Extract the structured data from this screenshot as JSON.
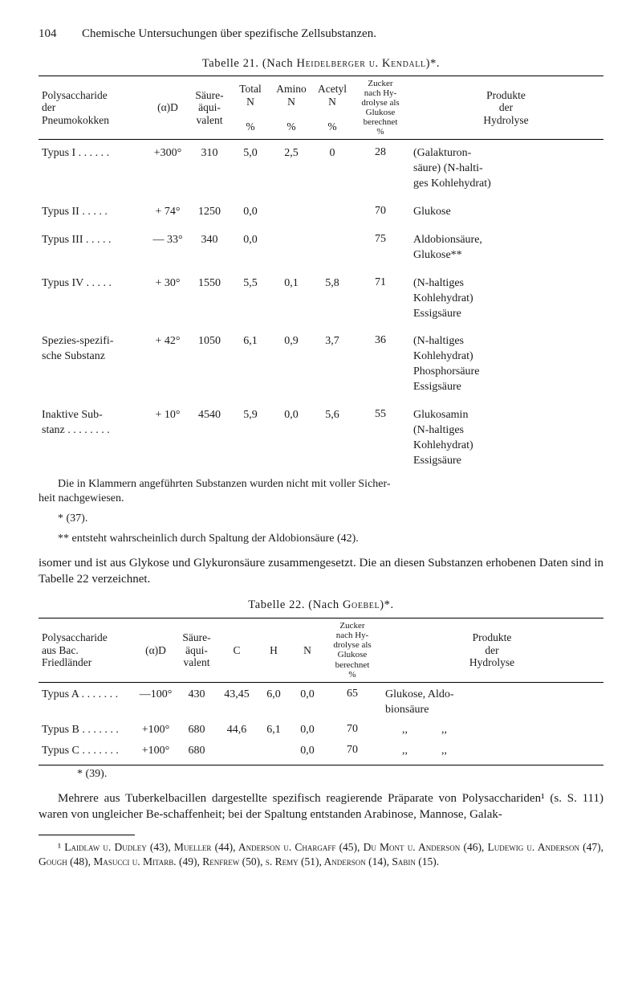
{
  "header": {
    "page_num": "104",
    "running": "Chemische Untersuchungen über spezifische Zellsubstanzen."
  },
  "table21": {
    "caption_prefix": "Tabelle 21.  (Nach ",
    "caption_names": "Heidelberger u. Kendall",
    "caption_suffix": ")*.",
    "headers": {
      "col1a": "Polysaccharide",
      "col1b": "der",
      "col1c": "Pneumokokken",
      "col2": "(α)D",
      "col3a": "Säure-",
      "col3b": "äqui-",
      "col3c": "valent",
      "col4a": "Total",
      "col4b": "N",
      "col4c": "%",
      "col5a": "Amino",
      "col5b": "N",
      "col5c": "%",
      "col6a": "Acetyl",
      "col6b": "N",
      "col6c": "%",
      "col7a": "Zucker",
      "col7b": "nach Hy-",
      "col7c": "drolyse als",
      "col7d": "Glukose",
      "col7e": "berechnet",
      "col7f": "%",
      "col8a": "Produkte",
      "col8b": "der",
      "col8c": "Hydrolyse"
    },
    "rows": [
      {
        "name": "Typus I  . . . . . .",
        "alpha": "+300°",
        "aq": "310",
        "tn": "5,0",
        "an": "2,5",
        "ac": "0",
        "zk": "28",
        "prod": "(Galakturon-\nsäure) (N-halti-\nges Kohlehydrat)"
      },
      {
        "name": "Typus II  . . . . .",
        "alpha": "+  74°",
        "aq": "1250",
        "tn": "0,0",
        "an": "",
        "ac": "",
        "zk": "70",
        "prod": "Glukose"
      },
      {
        "name": "Typus III . . . . .",
        "alpha": "—  33°",
        "aq": "340",
        "tn": "0,0",
        "an": "",
        "ac": "",
        "zk": "75",
        "prod": "Aldobionsäure,\nGlukose**"
      },
      {
        "name": "Typus IV . . . . .",
        "alpha": "+  30°",
        "aq": "1550",
        "tn": "5,5",
        "an": "0,1",
        "ac": "5,8",
        "zk": "71",
        "prod": "(N-haltiges\nKohlehydrat)\nEssigsäure"
      },
      {
        "name": "Spezies-spezifi-\nsche Substanz",
        "alpha": "+  42°",
        "aq": "1050",
        "tn": "6,1",
        "an": "0,9",
        "ac": "3,7",
        "zk": "36",
        "prod": "(N-haltiges\nKohlehydrat)\nPhosphorsäure\nEssigsäure"
      },
      {
        "name": "Inaktive Sub-\nstanz . . . . . . . .",
        "alpha": "+  10°",
        "aq": "4540",
        "tn": "5,9",
        "an": "0,0",
        "ac": "5,6",
        "zk": "55",
        "prod": "Glukosamin\n(N-haltiges\nKohlehydrat)\nEssigsäure"
      }
    ],
    "postnote": "Die in Klammern angeführten Substanzen wurden nicht mit voller Sicher-\nheit nachgewiesen.",
    "star37": "* (37).",
    "starstar": "** entsteht wahrscheinlich durch Spaltung der Aldobionsäure (42)."
  },
  "midpara": "isomer und ist aus Glykose und Glykuronsäure zusammengesetzt. Die an diesen Substanzen erhobenen Daten sind in Tabelle 22 verzeichnet.",
  "table22": {
    "caption_prefix": "Tabelle 22.  (Nach ",
    "caption_names": "Goebel",
    "caption_suffix": ")*.",
    "headers": {
      "col1a": "Polysaccharide",
      "col1b": "aus Bac.",
      "col1c": "Friedländer",
      "col2": "(α)D",
      "col3a": "Säure-",
      "col3b": "äqui-",
      "col3c": "valent",
      "col4": "C",
      "col5": "H",
      "col6": "N",
      "col7a": "Zucker",
      "col7b": "nach Hy-",
      "col7c": "drolyse als",
      "col7d": "Glukose",
      "col7e": "berechnet",
      "col7f": "%",
      "col8a": "Produkte",
      "col8b": "der",
      "col8c": "Hydrolyse"
    },
    "rows": [
      {
        "name": "Typus A . . . . . . .",
        "alpha": "—100°",
        "aq": "430",
        "c": "43,45",
        "h": "6,0",
        "n": "0,0",
        "zk": "65",
        "prod": "Glukose, Aldo-\nbionsäure"
      },
      {
        "name": "Typus B . . . . . . .",
        "alpha": "+100°",
        "aq": "680",
        "c": "44,6",
        "h": "6,1",
        "n": "0,0",
        "zk": "70",
        "prod": "      ,,            ,,"
      },
      {
        "name": "Typus C . . . . . . .",
        "alpha": "+100°",
        "aq": "680",
        "c": "",
        "h": "",
        "n": "0,0",
        "zk": "70",
        "prod": "      ,,            ,,"
      }
    ],
    "star39": "* (39)."
  },
  "lastpara": "Mehrere aus Tuberkelbacillen dargestellte spezifisch reagierende Präparate von Polysacchariden¹ (s. S. 111) waren von ungleicher Be-schaffenheit; bei der Spaltung entstanden Arabinose, Mannose, Galak-",
  "footnote": "¹ Laidlaw u. Dudley (43), Mueller (44), Anderson u. Chargaff (45), Du Mont u. Anderson (46), Ludewig u. Anderson (47), Gough (48), Masucci u. Mitarb. (49), Renfrew (50), s. Remy (51), Anderson (14), Sabin (15)."
}
